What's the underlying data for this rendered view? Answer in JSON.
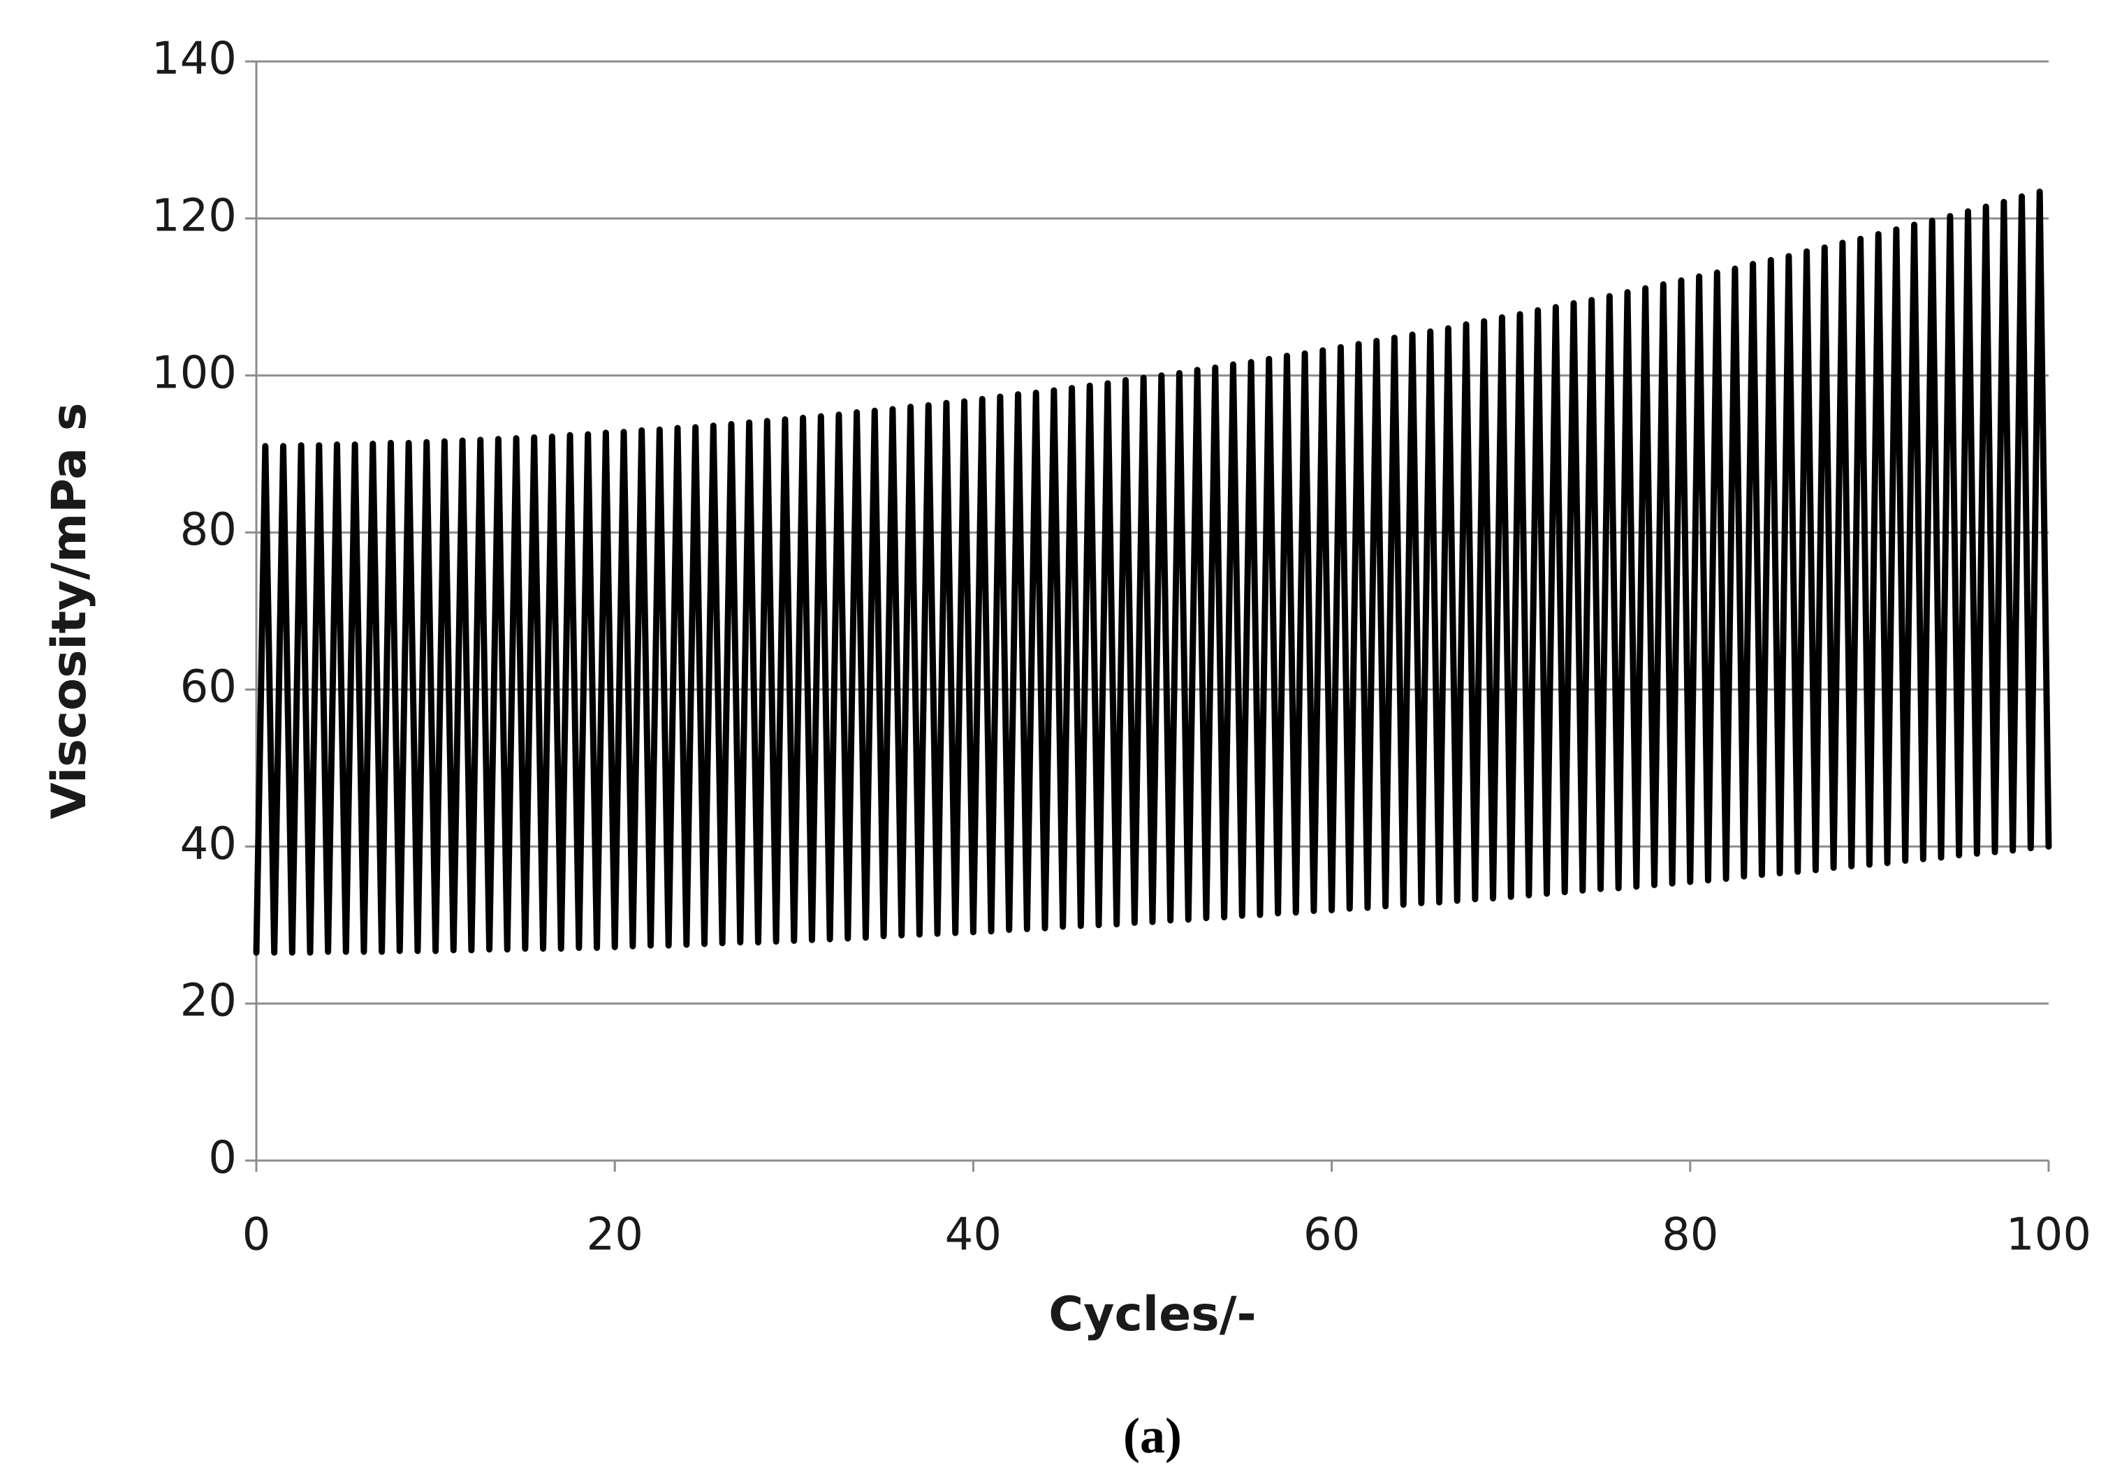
{
  "chart_data": {
    "type": "line",
    "xlabel": "Cycles/-",
    "ylabel": "Viscosity/mPa s",
    "caption": "(a)",
    "xlim": [
      0,
      100
    ],
    "xticks": [
      0,
      20,
      40,
      60,
      80,
      100
    ],
    "ylim": [
      0,
      140
    ],
    "yticks": [
      0,
      20,
      40,
      60,
      80,
      100,
      120,
      140
    ],
    "grid": true,
    "x": [
      0,
      0.5,
      1,
      1.5,
      2,
      2.5,
      3,
      3.5,
      4,
      4.5,
      5,
      5.5,
      6,
      6.5,
      7,
      7.5,
      8,
      8.5,
      9,
      9.5,
      10,
      10.5,
      11,
      11.5,
      12,
      12.5,
      13,
      13.5,
      14,
      14.5,
      15,
      15.5,
      16,
      16.5,
      17,
      17.5,
      18,
      18.5,
      19,
      19.5,
      20,
      20.5,
      21,
      21.5,
      22,
      22.5,
      23,
      23.5,
      24,
      24.5,
      25,
      25.5,
      26,
      26.5,
      27,
      27.5,
      28,
      28.5,
      29,
      29.5,
      30,
      30.5,
      31,
      31.5,
      32,
      32.5,
      33,
      33.5,
      34,
      34.5,
      35,
      35.5,
      36,
      36.5,
      37,
      37.5,
      38,
      38.5,
      39,
      39.5,
      40,
      40.5,
      41,
      41.5,
      42,
      42.5,
      43,
      43.5,
      44,
      44.5,
      45,
      45.5,
      46,
      46.5,
      47,
      47.5,
      48,
      48.5,
      49,
      49.5,
      50,
      50.5,
      51,
      51.5,
      52,
      52.5,
      53,
      53.5,
      54,
      54.5,
      55,
      55.5,
      56,
      56.5,
      57,
      57.5,
      58,
      58.5,
      59,
      59.5,
      60,
      60.5,
      61,
      61.5,
      62,
      62.5,
      63,
      63.5,
      64,
      64.5,
      65,
      65.5,
      66,
      66.5,
      67,
      67.5,
      68,
      68.5,
      69,
      69.5,
      70,
      70.5,
      71,
      71.5,
      72,
      72.5,
      73,
      73.5,
      74,
      74.5,
      75,
      75.5,
      76,
      76.5,
      77,
      77.5,
      78,
      78.5,
      79,
      79.5,
      80,
      80.5,
      81,
      81.5,
      82,
      82.5,
      83,
      83.5,
      84,
      84.5,
      85,
      85.5,
      86,
      86.5,
      87,
      87.5,
      88,
      88.5,
      89,
      89.5,
      90,
      90.5,
      91,
      91.5,
      92,
      92.5,
      93,
      93.5,
      94,
      94.5,
      95,
      95.5,
      96,
      96.5,
      97,
      97.5,
      98,
      98.5,
      99,
      99.5,
      100
    ],
    "series": [
      {
        "color": "#000000",
        "values": [
          26.5,
          91.0,
          26.5,
          91.0,
          26.5,
          91.1,
          26.5,
          91.1,
          26.6,
          91.2,
          26.6,
          91.2,
          26.6,
          91.3,
          26.6,
          91.4,
          26.7,
          91.4,
          26.7,
          91.5,
          26.7,
          91.6,
          26.8,
          91.7,
          26.8,
          91.8,
          26.9,
          91.9,
          26.9,
          92.0,
          27.0,
          92.1,
          27.0,
          92.2,
          27.0,
          92.4,
          27.1,
          92.5,
          27.1,
          92.7,
          27.2,
          92.8,
          27.3,
          93.0,
          27.4,
          93.1,
          27.4,
          93.3,
          27.5,
          93.4,
          27.6,
          93.6,
          27.7,
          93.8,
          27.8,
          94.0,
          27.8,
          94.2,
          27.9,
          94.4,
          28.0,
          94.6,
          28.1,
          94.8,
          28.2,
          95.0,
          28.3,
          95.3,
          28.4,
          95.5,
          28.6,
          95.7,
          28.7,
          96.0,
          28.8,
          96.2,
          28.9,
          96.5,
          29.0,
          96.7,
          29.1,
          97.0,
          29.2,
          97.3,
          29.4,
          97.6,
          29.5,
          97.8,
          29.6,
          98.1,
          29.8,
          98.4,
          29.9,
          98.7,
          30.0,
          99.0,
          30.1,
          99.4,
          30.3,
          99.7,
          30.4,
          100.0,
          30.6,
          100.3,
          30.7,
          100.7,
          30.9,
          101.0,
          31.0,
          101.4,
          31.2,
          101.7,
          31.3,
          102.1,
          31.5,
          102.5,
          31.6,
          102.8,
          31.8,
          103.2,
          31.9,
          103.6,
          32.1,
          104.0,
          32.2,
          104.4,
          32.4,
          104.8,
          32.6,
          105.2,
          32.8,
          105.6,
          32.9,
          106.0,
          33.1,
          106.5,
          33.3,
          106.9,
          33.4,
          107.4,
          33.6,
          107.8,
          33.8,
          108.3,
          34.0,
          108.7,
          34.2,
          109.2,
          34.4,
          109.6,
          34.6,
          110.1,
          34.7,
          110.6,
          34.9,
          111.1,
          35.1,
          111.6,
          35.3,
          112.1,
          35.5,
          112.6,
          35.7,
          113.1,
          35.9,
          113.6,
          36.2,
          114.2,
          36.4,
          114.7,
          36.6,
          115.2,
          36.8,
          115.8,
          37.0,
          116.3,
          37.3,
          116.9,
          37.5,
          117.4,
          37.7,
          118.0,
          37.9,
          118.6,
          38.2,
          119.2,
          38.4,
          119.7,
          38.6,
          120.3,
          38.9,
          120.9,
          39.1,
          121.5,
          39.3,
          122.1,
          39.5,
          122.8,
          39.8,
          123.4,
          40.0
        ]
      }
    ]
  }
}
